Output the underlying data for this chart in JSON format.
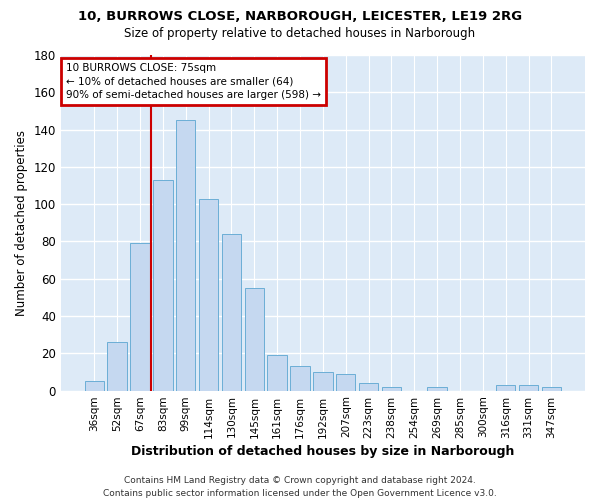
{
  "title1": "10, BURROWS CLOSE, NARBOROUGH, LEICESTER, LE19 2RG",
  "title2": "Size of property relative to detached houses in Narborough",
  "xlabel": "Distribution of detached houses by size in Narborough",
  "ylabel": "Number of detached properties",
  "categories": [
    "36sqm",
    "52sqm",
    "67sqm",
    "83sqm",
    "99sqm",
    "114sqm",
    "130sqm",
    "145sqm",
    "161sqm",
    "176sqm",
    "192sqm",
    "207sqm",
    "223sqm",
    "238sqm",
    "254sqm",
    "269sqm",
    "285sqm",
    "300sqm",
    "316sqm",
    "331sqm",
    "347sqm"
  ],
  "values": [
    5,
    26,
    79,
    113,
    145,
    103,
    84,
    55,
    19,
    13,
    10,
    9,
    4,
    2,
    0,
    2,
    0,
    0,
    3,
    3,
    2
  ],
  "bar_color": "#c5d8f0",
  "bar_edge_color": "#6baed6",
  "bg_color": "#ddeaf7",
  "grid_color": "#ffffff",
  "vline_color": "#cc0000",
  "ann_line1": "10 BURROWS CLOSE: 75sqm",
  "ann_line2": "← 10% of detached houses are smaller (64)",
  "ann_line3": "90% of semi-detached houses are larger (598) →",
  "ann_box_color": "#cc0000",
  "footer": "Contains HM Land Registry data © Crown copyright and database right 2024.\nContains public sector information licensed under the Open Government Licence v3.0.",
  "ylim": [
    0,
    180
  ],
  "yticks": [
    0,
    20,
    40,
    60,
    80,
    100,
    120,
    140,
    160,
    180
  ],
  "fig_bg": "#ffffff",
  "vline_pos": 2.5
}
